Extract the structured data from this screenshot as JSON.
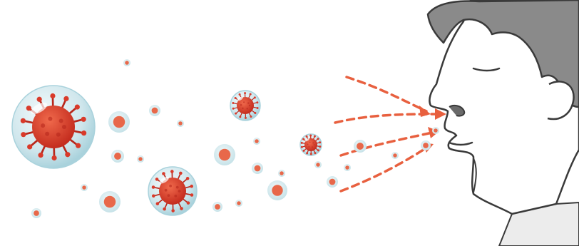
{
  "illustration": {
    "icons": {
      "virus_large": "virus-in-bubble-icon",
      "droplet": "droplet-icon",
      "airflow": "dashed-arrow-icon",
      "person": "person-profile-icon"
    },
    "colors": {
      "bubble_outer": "#cfe6ec",
      "bubble_inner": "#a9d2dc",
      "droplet_ring": "#d8ecef",
      "droplet_core": "#e8684a",
      "virus_red": "#d93a2a",
      "virus_dark": "#b8281c",
      "arrow": "#e8603f",
      "hair": "#8a8a8a",
      "outline": "#3a3a3a",
      "skin": "#ffffff",
      "shirt": "#ececec"
    }
  }
}
